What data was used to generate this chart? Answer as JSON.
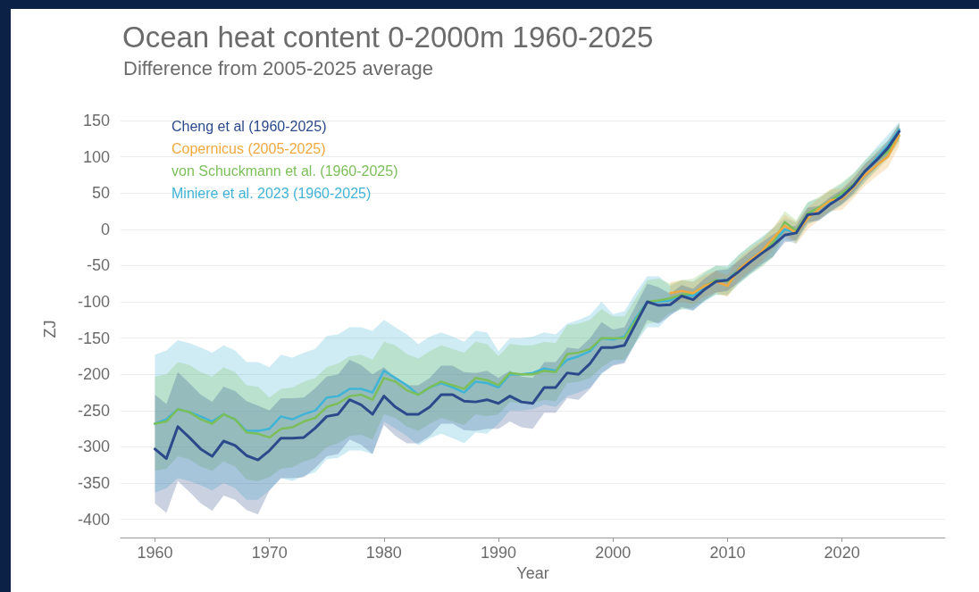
{
  "chart_data": {
    "type": "line",
    "title": "Ocean heat content 0-2000m 1960-2025",
    "subtitle": "Difference from 2005-2025 average",
    "xlabel": "Year",
    "ylabel": "ZJ",
    "x": [
      1960,
      1961,
      1962,
      1963,
      1964,
      1965,
      1966,
      1967,
      1968,
      1969,
      1970,
      1971,
      1972,
      1973,
      1974,
      1975,
      1976,
      1977,
      1978,
      1979,
      1980,
      1981,
      1982,
      1983,
      1984,
      1985,
      1986,
      1987,
      1988,
      1989,
      1990,
      1991,
      1992,
      1993,
      1994,
      1995,
      1996,
      1997,
      1998,
      1999,
      2000,
      2001,
      2002,
      2003,
      2004,
      2005,
      2006,
      2007,
      2008,
      2009,
      2010,
      2011,
      2012,
      2013,
      2014,
      2015,
      2016,
      2017,
      2018,
      2019,
      2020,
      2021,
      2022,
      2023,
      2024,
      2025
    ],
    "series": [
      {
        "name": "Cheng et al (1960-2025)",
        "color": "#2b4a8c",
        "values": [
          -303,
          -316,
          -272,
          -287,
          -303,
          -313,
          -292,
          -298,
          -312,
          -318,
          -305,
          -288,
          -288,
          -287,
          -274,
          -258,
          -255,
          -235,
          -242,
          -255,
          -230,
          -245,
          -255,
          -255,
          -245,
          -228,
          -228,
          -237,
          -238,
          -235,
          -240,
          -230,
          -238,
          -240,
          -218,
          -218,
          -198,
          -200,
          -185,
          -163,
          -163,
          -160,
          -130,
          -100,
          -105,
          -104,
          -92,
          -97,
          -83,
          -72,
          -70,
          -58,
          -45,
          -33,
          -22,
          -8,
          -5,
          20,
          22,
          35,
          45,
          60,
          80,
          95,
          112,
          135
        ],
        "lower": [
          -378,
          -391,
          -347,
          -362,
          -378,
          -388,
          -367,
          -373,
          -387,
          -393,
          -360,
          -343,
          -343,
          -342,
          -329,
          -313,
          -310,
          -290,
          -297,
          -310,
          -270,
          -285,
          -295,
          -295,
          -285,
          -268,
          -268,
          -277,
          -278,
          -275,
          -275,
          -265,
          -273,
          -275,
          -253,
          -253,
          -233,
          -235,
          -220,
          -198,
          -188,
          -185,
          -155,
          -125,
          -130,
          -119,
          -107,
          -112,
          -98,
          -87,
          -85,
          -73,
          -60,
          -48,
          -37,
          -18,
          -15,
          10,
          12,
          25,
          35,
          50,
          70,
          85,
          102,
          125
        ],
        "upper": [
          -228,
          -241,
          -197,
          -212,
          -228,
          -238,
          -217,
          -223,
          -237,
          -243,
          -250,
          -233,
          -233,
          -232,
          -219,
          -203,
          -200,
          -180,
          -187,
          -200,
          -190,
          -205,
          -215,
          -215,
          -205,
          -188,
          -188,
          -197,
          -198,
          -195,
          -205,
          -195,
          -203,
          -205,
          -183,
          -183,
          -163,
          -165,
          -150,
          -128,
          -138,
          -135,
          -105,
          -75,
          -80,
          -89,
          -77,
          -82,
          -68,
          -57,
          -55,
          -43,
          -30,
          -18,
          -7,
          2,
          5,
          30,
          32,
          45,
          55,
          70,
          90,
          105,
          122,
          145
        ]
      },
      {
        "name": "Copernicus (2005-2025)",
        "color": "#f0a940",
        "x": [
          2005,
          2006,
          2007,
          2008,
          2009,
          2010,
          2011,
          2012,
          2013,
          2014,
          2015,
          2016,
          2017,
          2018,
          2019,
          2020,
          2021,
          2022,
          2023,
          2024,
          2025
        ],
        "values": [
          -88,
          -85,
          -88,
          -78,
          -72,
          -78,
          -55,
          -42,
          -30,
          -12,
          5,
          -5,
          15,
          28,
          40,
          42,
          58,
          75,
          88,
          100,
          130
        ],
        "lower": [
          -103,
          -100,
          -103,
          -93,
          -87,
          -93,
          -70,
          -57,
          -45,
          -27,
          -10,
          -20,
          0,
          13,
          25,
          27,
          43,
          60,
          73,
          85,
          115
        ],
        "upper": [
          -73,
          -70,
          -73,
          -63,
          -57,
          -63,
          -40,
          -27,
          -15,
          3,
          20,
          10,
          30,
          43,
          55,
          57,
          73,
          90,
          103,
          115,
          145
        ]
      },
      {
        "name": "von Schuckmann et al. (1960-2025)",
        "color": "#7cbf5a",
        "values": [
          -268,
          -265,
          -248,
          -252,
          -262,
          -268,
          -255,
          -262,
          -280,
          -282,
          -287,
          -275,
          -273,
          -265,
          -260,
          -245,
          -240,
          -230,
          -228,
          -235,
          -205,
          -210,
          -222,
          -228,
          -218,
          -210,
          -215,
          -220,
          -205,
          -208,
          -215,
          -198,
          -200,
          -200,
          -195,
          -197,
          -172,
          -170,
          -165,
          -150,
          -150,
          -150,
          -125,
          -100,
          -98,
          -95,
          -90,
          -88,
          -78,
          -70,
          -72,
          -55,
          -42,
          -32,
          -18,
          10,
          -2,
          22,
          30,
          40,
          50,
          62,
          80,
          95,
          107,
          129
        ],
        "lower": [
          -333,
          -330,
          -313,
          -317,
          -327,
          -333,
          -320,
          -327,
          -345,
          -347,
          -342,
          -330,
          -328,
          -320,
          -315,
          -300,
          -295,
          -285,
          -283,
          -290,
          -255,
          -260,
          -272,
          -278,
          -268,
          -260,
          -265,
          -270,
          -255,
          -258,
          -255,
          -238,
          -240,
          -240,
          -235,
          -237,
          -212,
          -210,
          -205,
          -190,
          -180,
          -180,
          -155,
          -130,
          -128,
          -115,
          -110,
          -108,
          -98,
          -90,
          -92,
          -75,
          -62,
          -52,
          -38,
          -5,
          -17,
          7,
          15,
          25,
          35,
          47,
          65,
          80,
          97,
          120
        ],
        "upper": [
          -203,
          -200,
          -183,
          -187,
          -197,
          -203,
          -190,
          -197,
          -215,
          -217,
          -232,
          -220,
          -218,
          -210,
          -205,
          -190,
          -185,
          -175,
          -173,
          -180,
          -155,
          -160,
          -172,
          -178,
          -168,
          -160,
          -165,
          -170,
          -155,
          -158,
          -175,
          -158,
          -160,
          -160,
          -155,
          -157,
          -132,
          -130,
          -125,
          -110,
          -120,
          -120,
          -95,
          -70,
          -68,
          -75,
          -70,
          -68,
          -58,
          -50,
          -52,
          -35,
          -22,
          -12,
          2,
          25,
          13,
          37,
          45,
          55,
          65,
          77,
          95,
          110,
          122,
          146
        ]
      },
      {
        "name": "Miniere et al. 2023 (1960-2025)",
        "color": "#3fb4d6",
        "values": [
          -268,
          -262,
          -248,
          -252,
          -258,
          -265,
          -255,
          -262,
          -278,
          -278,
          -275,
          -258,
          -262,
          -255,
          -250,
          -232,
          -230,
          -220,
          -220,
          -225,
          -195,
          -205,
          -215,
          -228,
          -218,
          -212,
          -218,
          -225,
          -210,
          -212,
          -218,
          -200,
          -200,
          -198,
          -192,
          -195,
          -180,
          -175,
          -168,
          -150,
          -152,
          -148,
          -122,
          -100,
          -100,
          -98,
          -90,
          -92,
          -80,
          -70,
          -70,
          -55,
          -42,
          -30,
          -18,
          0,
          -5,
          22,
          28,
          38,
          48,
          62,
          80,
          98,
          115,
          138
        ],
        "lower": [
          -363,
          -357,
          -343,
          -347,
          -353,
          -360,
          -350,
          -357,
          -373,
          -373,
          -360,
          -343,
          -347,
          -340,
          -335,
          -317,
          -315,
          -305,
          -305,
          -310,
          -265,
          -275,
          -285,
          -298,
          -288,
          -282,
          -288,
          -295,
          -280,
          -282,
          -268,
          -250,
          -250,
          -248,
          -242,
          -245,
          -230,
          -225,
          -218,
          -200,
          -187,
          -183,
          -157,
          -135,
          -135,
          -118,
          -110,
          -112,
          -100,
          -90,
          -90,
          -75,
          -62,
          -50,
          -38,
          -15,
          -20,
          7,
          13,
          23,
          33,
          47,
          65,
          83,
          100,
          123
        ],
        "upper": [
          -173,
          -167,
          -153,
          -157,
          -163,
          -170,
          -160,
          -167,
          -183,
          -183,
          -190,
          -173,
          -177,
          -170,
          -165,
          -147,
          -145,
          -135,
          -135,
          -140,
          -125,
          -135,
          -145,
          -158,
          -148,
          -142,
          -148,
          -155,
          -140,
          -142,
          -168,
          -150,
          -150,
          -148,
          -142,
          -145,
          -130,
          -125,
          -118,
          -100,
          -117,
          -113,
          -87,
          -65,
          -65,
          -78,
          -70,
          -72,
          -60,
          -50,
          -50,
          -35,
          -22,
          -10,
          2,
          15,
          10,
          37,
          43,
          53,
          63,
          77,
          95,
          113,
          130,
          148
        ]
      }
    ],
    "xlim": [
      1957,
      2029
    ],
    "xticks": [
      1960,
      1970,
      1980,
      1990,
      2000,
      2010,
      2020
    ],
    "ylim": [
      -425,
      150
    ],
    "yticks": [
      -400,
      -350,
      -300,
      -250,
      -200,
      -150,
      -100,
      -50,
      0,
      50,
      100,
      150
    ],
    "grid": "y",
    "legend": "top left",
    "marker": "none",
    "line_style": "solid"
  }
}
